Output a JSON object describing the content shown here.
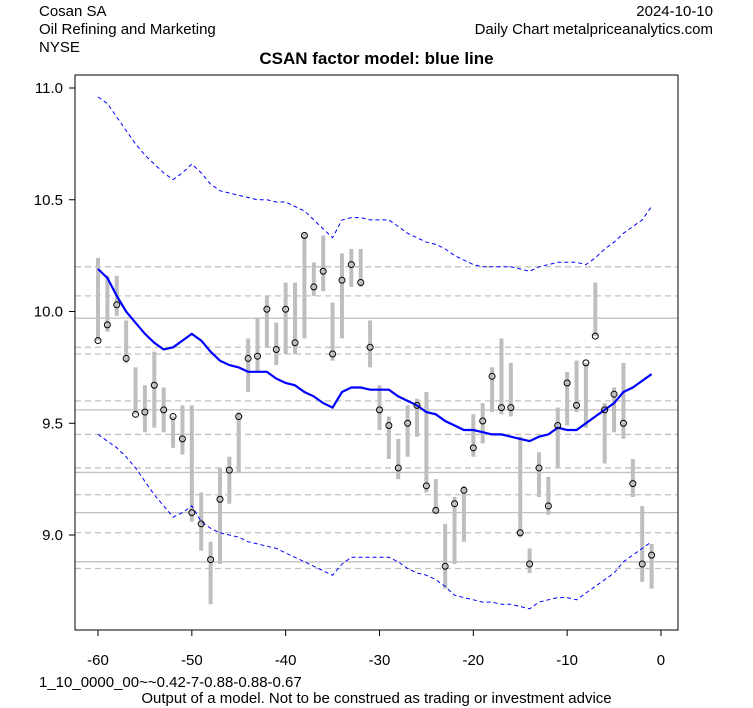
{
  "header": {
    "company": "Cosan SA",
    "industry": "Oil Refining and Marketing",
    "exchange": "NYSE",
    "date": "2024-10-10",
    "source": "Daily Chart metalpriceanalytics.com"
  },
  "footer": {
    "code": "1_10_0000_00~~0.42-7-0.88-0.88-0.67",
    "disclaimer": "Output of a model. Not to be construed as trading or investment advice"
  },
  "chart_data": {
    "type": "line",
    "title": "CSAN factor model: blue line",
    "xlabel": "",
    "ylabel": "",
    "xlim": [
      -63,
      1.8
    ],
    "ylim": [
      8.52,
      11.06
    ],
    "x_ticks": [
      -60,
      -50,
      -40,
      -30,
      -20,
      -10,
      0
    ],
    "y_ticks": [
      9.0,
      9.5,
      10.0,
      10.5,
      11.0
    ],
    "y_tick_labels": [
      "9.0",
      "9.5",
      "10.0",
      "10.5",
      "11.0"
    ],
    "solid_levels": [
      9.97,
      9.56,
      9.28,
      9.1,
      8.88
    ],
    "dashed_levels": [
      10.2,
      10.07,
      9.84,
      9.81,
      9.6,
      9.45,
      9.3,
      9.18,
      9.01,
      8.85
    ],
    "colors": {
      "model": "#0000ff",
      "bars": "#bebebe",
      "levels": "#c0c0c0"
    },
    "x": [
      -60,
      -59,
      -58,
      -57,
      -56,
      -55,
      -54,
      -53,
      -52,
      -51,
      -50,
      -49,
      -48,
      -47,
      -46,
      -45,
      -44,
      -43,
      -42,
      -41,
      -40,
      -39,
      -38,
      -37,
      -36,
      -35,
      -34,
      -33,
      -32,
      -31,
      -30,
      -29,
      -28,
      -27,
      -26,
      -25,
      -24,
      -23,
      -22,
      -21,
      -20,
      -19,
      -18,
      -17,
      -16,
      -15,
      -14,
      -13,
      -12,
      -11,
      -10,
      -9,
      -8,
      -7,
      -6,
      -5,
      -4,
      -3,
      -2,
      -1
    ],
    "series": [
      {
        "name": "close",
        "style": "points",
        "values": [
          9.87,
          9.94,
          10.03,
          9.79,
          9.54,
          9.55,
          9.67,
          9.56,
          9.53,
          9.43,
          9.1,
          9.05,
          8.89,
          9.16,
          9.29,
          9.53,
          9.79,
          9.8,
          10.01,
          9.83,
          10.01,
          9.86,
          10.34,
          10.11,
          10.18,
          9.81,
          10.14,
          10.21,
          10.13,
          9.84,
          9.56,
          9.49,
          9.3,
          9.5,
          9.58,
          9.22,
          9.11,
          8.86,
          9.14,
          9.2,
          9.39,
          9.51,
          9.71,
          9.57,
          9.57,
          9.01,
          8.87,
          9.3,
          9.13,
          9.49,
          9.68,
          9.58,
          9.77,
          9.89,
          9.56,
          9.63,
          9.5,
          9.23,
          8.87,
          8.91
        ]
      },
      {
        "name": "range_high",
        "style": "bars",
        "values": [
          10.24,
          10.16,
          10.16,
          9.96,
          9.75,
          9.67,
          9.82,
          9.66,
          9.53,
          9.58,
          9.58,
          9.19,
          8.97,
          9.3,
          9.35,
          9.55,
          9.88,
          9.97,
          10.07,
          9.95,
          10.13,
          10.13,
          10.35,
          10.22,
          10.34,
          10.04,
          10.26,
          10.28,
          10.28,
          9.96,
          9.67,
          9.53,
          9.43,
          9.58,
          9.61,
          9.64,
          9.25,
          9.05,
          9.17,
          9.22,
          9.54,
          9.59,
          9.75,
          9.88,
          9.77,
          9.44,
          8.94,
          9.37,
          9.26,
          9.57,
          9.73,
          9.78,
          9.77,
          10.13,
          9.59,
          9.66,
          9.77,
          9.34,
          9.13,
          8.96
        ]
      },
      {
        "name": "range_low",
        "style": "bars",
        "values": [
          9.87,
          9.91,
          9.98,
          9.77,
          9.54,
          9.46,
          9.48,
          9.46,
          9.39,
          9.36,
          9.06,
          8.93,
          8.69,
          8.87,
          9.14,
          9.28,
          9.64,
          9.73,
          9.84,
          9.76,
          9.81,
          9.81,
          9.88,
          10.07,
          10.09,
          9.78,
          9.88,
          10.11,
          10.11,
          9.75,
          9.47,
          9.34,
          9.25,
          9.35,
          9.44,
          9.19,
          9.1,
          8.76,
          8.87,
          8.97,
          9.35,
          9.41,
          9.55,
          9.54,
          9.53,
          8.99,
          8.83,
          9.17,
          9.09,
          9.3,
          9.49,
          9.55,
          9.48,
          9.89,
          9.32,
          9.46,
          9.43,
          9.17,
          8.79,
          8.76
        ]
      },
      {
        "name": "model",
        "style": "solid-line",
        "values": [
          10.19,
          10.15,
          10.07,
          10.0,
          9.95,
          9.9,
          9.86,
          9.83,
          9.84,
          9.87,
          9.9,
          9.87,
          9.82,
          9.78,
          9.76,
          9.75,
          9.73,
          9.73,
          9.73,
          9.7,
          9.68,
          9.67,
          9.64,
          9.62,
          9.59,
          9.57,
          9.64,
          9.66,
          9.66,
          9.65,
          9.65,
          9.65,
          9.62,
          9.6,
          9.58,
          9.55,
          9.54,
          9.51,
          9.49,
          9.47,
          9.47,
          9.46,
          9.45,
          9.45,
          9.44,
          9.43,
          9.42,
          9.44,
          9.45,
          9.48,
          9.47,
          9.47,
          9.5,
          9.53,
          9.56,
          9.59,
          9.64,
          9.66,
          9.69,
          9.72
        ]
      },
      {
        "name": "upper_band",
        "style": "dashed-line",
        "values": [
          10.96,
          10.93,
          10.87,
          10.81,
          10.75,
          10.7,
          10.66,
          10.62,
          10.59,
          10.62,
          10.66,
          10.62,
          10.57,
          10.54,
          10.53,
          10.52,
          10.51,
          10.5,
          10.5,
          10.49,
          10.49,
          10.47,
          10.45,
          10.41,
          10.37,
          10.33,
          10.41,
          10.42,
          10.42,
          10.41,
          10.41,
          10.41,
          10.38,
          10.35,
          10.33,
          10.31,
          10.3,
          10.28,
          10.25,
          10.23,
          10.21,
          10.2,
          10.2,
          10.2,
          10.2,
          10.19,
          10.18,
          10.2,
          10.21,
          10.22,
          10.22,
          10.22,
          10.21,
          10.24,
          10.28,
          10.31,
          10.35,
          10.38,
          10.41,
          10.47
        ]
      },
      {
        "name": "lower_band",
        "style": "dashed-line",
        "values": [
          9.45,
          9.42,
          9.39,
          9.35,
          9.3,
          9.24,
          9.18,
          9.13,
          9.08,
          9.1,
          9.13,
          9.06,
          9.03,
          9.01,
          9.0,
          8.99,
          8.97,
          8.96,
          8.95,
          8.94,
          8.92,
          8.9,
          8.88,
          8.86,
          8.84,
          8.82,
          8.87,
          8.9,
          8.9,
          8.9,
          8.9,
          8.9,
          8.88,
          8.85,
          8.83,
          8.82,
          8.8,
          8.77,
          8.73,
          8.72,
          8.71,
          8.7,
          8.7,
          8.69,
          8.69,
          8.68,
          8.67,
          8.7,
          8.71,
          8.72,
          8.72,
          8.71,
          8.74,
          8.77,
          8.8,
          8.83,
          8.88,
          8.91,
          8.94,
          8.97
        ]
      }
    ]
  }
}
